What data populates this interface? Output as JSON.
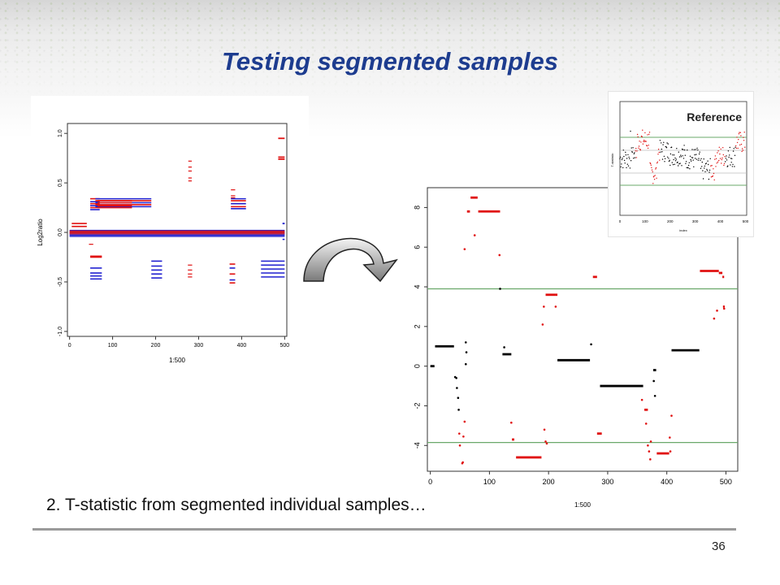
{
  "slide": {
    "title": "Testing segmented samples",
    "caption": "2. T-statistic from segmented individual samples…",
    "page_number": "36"
  },
  "colors": {
    "title": "#1d3c8f",
    "red": "#e01010",
    "blue": "#2020d0",
    "black": "#000000",
    "threshold": "#6aa86a"
  },
  "left_plot": {
    "xlabel": "1:500",
    "ylabel": "Log2ratio",
    "x_ticks": [
      "0",
      "100",
      "200",
      "300",
      "400",
      "500"
    ],
    "y_ticks": [
      "-1.0",
      "-0.5",
      "0.0",
      "0.5",
      "1.0"
    ]
  },
  "reference_plot": {
    "label": "Reference",
    "xlabel": "index",
    "ylabel": "T-statistic",
    "x_ticks": [
      "0",
      "100",
      "200",
      "300",
      "400",
      "500"
    ]
  },
  "arrow": {
    "icon": "curved-arrow-icon"
  },
  "chart_data": {
    "type": "scatter",
    "xlabel": "1:500",
    "ylabel": "",
    "xlim": [
      -5,
      520
    ],
    "ylim": [
      -5.3,
      9.0
    ],
    "x_ticks": [
      "0",
      "100",
      "200",
      "300",
      "400",
      "500"
    ],
    "y_ticks": [
      "-4",
      "-2",
      "0",
      "2",
      "4",
      "6",
      "8"
    ],
    "thresholds": [
      3.9,
      -3.85
    ],
    "series": [
      {
        "color": "black",
        "segments": [
          {
            "x0": 0,
            "x1": 7,
            "y": 0.0
          },
          {
            "x0": 8,
            "x1": 40,
            "y": 1.0
          },
          {
            "x0": 122,
            "x1": 137,
            "y": 0.6
          },
          {
            "x0": 215,
            "x1": 270,
            "y": 0.3
          },
          {
            "x0": 287,
            "x1": 360,
            "y": -1.0
          },
          {
            "x0": 377,
            "x1": 382,
            "y": -0.2
          },
          {
            "x0": 408,
            "x1": 455,
            "y": 0.8
          }
        ]
      },
      {
        "color": "red",
        "segments": [
          {
            "x0": 62,
            "x1": 67,
            "y": 7.8
          },
          {
            "x0": 68,
            "x1": 80,
            "y": 8.5
          },
          {
            "x0": 81,
            "x1": 118,
            "y": 7.8
          },
          {
            "x0": 138,
            "x1": 142,
            "y": -3.7
          },
          {
            "x0": 145,
            "x1": 188,
            "y": -4.6
          },
          {
            "x0": 195,
            "x1": 215,
            "y": 3.6
          },
          {
            "x0": 275,
            "x1": 282,
            "y": 4.5
          },
          {
            "x0": 282,
            "x1": 290,
            "y": -3.4
          },
          {
            "x0": 362,
            "x1": 368,
            "y": -2.2
          },
          {
            "x0": 383,
            "x1": 404,
            "y": -4.4
          },
          {
            "x0": 456,
            "x1": 488,
            "y": 4.8
          },
          {
            "x0": 488,
            "x1": 494,
            "y": 4.7
          },
          {
            "x0": 494,
            "x1": 497,
            "y": 4.5
          },
          {
            "x0": 495,
            "x1": 498,
            "y": 3.0
          }
        ]
      },
      {
        "color": "black",
        "points": [
          [
            60,
            1.2
          ],
          [
            61,
            0.7
          ],
          [
            60,
            0.1
          ],
          [
            42,
            -0.55
          ],
          [
            44,
            -0.6
          ],
          [
            45,
            -1.1
          ],
          [
            47,
            -1.6
          ],
          [
            48,
            -2.2
          ],
          [
            125,
            0.95
          ],
          [
            118,
            3.9
          ],
          [
            272,
            1.1
          ],
          [
            378,
            -0.75
          ],
          [
            380,
            -1.5
          ]
        ]
      },
      {
        "color": "red",
        "points": [
          [
            58,
            5.9
          ],
          [
            75,
            6.6
          ],
          [
            117,
            5.6
          ],
          [
            49,
            -3.4
          ],
          [
            50,
            -4.0
          ],
          [
            54,
            -4.9
          ],
          [
            55,
            -4.85
          ],
          [
            56,
            -3.55
          ],
          [
            58,
            -2.8
          ],
          [
            137,
            -2.85
          ],
          [
            190,
            2.1
          ],
          [
            192,
            3.0
          ],
          [
            193,
            -3.2
          ],
          [
            195,
            -3.8
          ],
          [
            197,
            -3.9
          ],
          [
            212,
            3.0
          ],
          [
            358,
            -1.7
          ],
          [
            365,
            -2.9
          ],
          [
            368,
            -4.0
          ],
          [
            370,
            -4.3
          ],
          [
            372,
            -4.7
          ],
          [
            373,
            -3.8
          ],
          [
            405,
            -3.6
          ],
          [
            406,
            -4.3
          ],
          [
            408,
            -2.5
          ],
          [
            480,
            2.4
          ],
          [
            485,
            2.8
          ],
          [
            497,
            2.9
          ]
        ]
      }
    ]
  }
}
